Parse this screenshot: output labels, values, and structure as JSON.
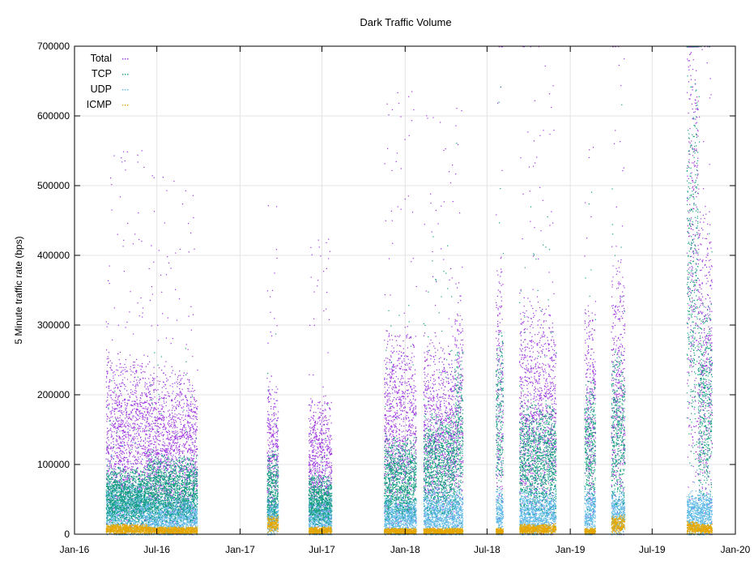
{
  "chart_data": {
    "type": "scatter",
    "title": "Dark Traffic Volume",
    "ylabel": "5 Minute traffic rate (bps)",
    "xlabel": "",
    "ylim": [
      0,
      700000
    ],
    "xlim": [
      "2016-01-01",
      "2020-01-01"
    ],
    "grid": true,
    "legend_placement": "top-left",
    "x_tick_labels": [
      "Jan-16",
      "Jul-16",
      "Jan-17",
      "Jul-17",
      "Jan-18",
      "Jul-18",
      "Jan-19",
      "Jul-19",
      "Jan-20"
    ],
    "x_ticks": [
      "2016-01-01",
      "2016-07-01",
      "2017-01-01",
      "2017-07-01",
      "2018-01-01",
      "2018-07-01",
      "2019-01-01",
      "2019-07-01",
      "2020-01-01"
    ],
    "y_ticks": [
      0,
      100000,
      200000,
      300000,
      400000,
      500000,
      600000,
      700000
    ],
    "y_tick_labels": [
      "0",
      "100000",
      "200000",
      "300000",
      "400000",
      "500000",
      "600000",
      "700000"
    ],
    "series": [
      {
        "name": "Total",
        "color": "#9b2fe0"
      },
      {
        "name": "TCP",
        "color": "#0f9e7e"
      },
      {
        "name": "UDP",
        "color": "#5cb8e6"
      },
      {
        "name": "ICMP",
        "color": "#e6a800"
      }
    ],
    "segments": [
      {
        "start": "2016-03-10",
        "end": "2016-06-10",
        "total": 130000,
        "tcp": 55000,
        "udp": 35000,
        "icmp": 8000
      },
      {
        "start": "2016-06-10",
        "end": "2016-09-28",
        "total": 120000,
        "tcp": 65000,
        "udp": 25000,
        "icmp": 6000
      },
      {
        "start": "2017-03-01",
        "end": "2017-03-26",
        "total": 110000,
        "tcp": 70000,
        "udp": 25000,
        "icmp": 15000
      },
      {
        "start": "2017-06-01",
        "end": "2017-07-22",
        "total": 100000,
        "tcp": 50000,
        "udp": 25000,
        "icmp": 6000
      },
      {
        "start": "2017-11-15",
        "end": "2018-01-25",
        "total": 150000,
        "tcp": 80000,
        "udp": 25000,
        "icmp": 5000
      },
      {
        "start": "2018-02-10",
        "end": "2018-04-20",
        "total": 140000,
        "tcp": 100000,
        "udp": 30000,
        "icmp": 5000
      },
      {
        "start": "2018-04-20",
        "end": "2018-05-08",
        "total": 180000,
        "tcp": 150000,
        "udp": 30000,
        "icmp": 5000
      },
      {
        "start": "2018-07-20",
        "end": "2018-08-05",
        "total": 200000,
        "tcp": 170000,
        "udp": 30000,
        "icmp": 5000
      },
      {
        "start": "2018-09-10",
        "end": "2018-11-30",
        "total": 170000,
        "tcp": 110000,
        "udp": 30000,
        "icmp": 8000
      },
      {
        "start": "2019-02-01",
        "end": "2019-02-25",
        "total": 170000,
        "tcp": 130000,
        "udp": 30000,
        "icmp": 5000
      },
      {
        "start": "2019-04-01",
        "end": "2019-05-01",
        "total": 200000,
        "tcp": 150000,
        "udp": 30000,
        "icmp": 15000
      },
      {
        "start": "2019-09-15",
        "end": "2019-10-10",
        "total": 450000,
        "tcp": 380000,
        "udp": 30000,
        "icmp": 10000
      },
      {
        "start": "2019-10-10",
        "end": "2019-11-10",
        "total": 240000,
        "tcp": 190000,
        "udp": 30000,
        "icmp": 8000
      }
    ]
  }
}
